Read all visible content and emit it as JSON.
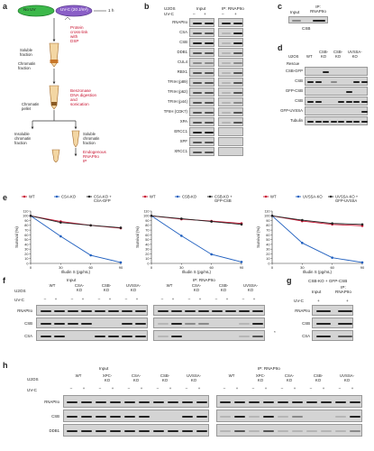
{
  "panel_letters": {
    "a": "a",
    "b": "b",
    "c": "c",
    "d": "d",
    "e": "e",
    "f": "f",
    "g": "g",
    "h": "h"
  },
  "panel_a": {
    "dish1": "No UV",
    "dish2": "UV-C (20 J/m²)",
    "time": "1 h",
    "step1": "Protein\ncross-link\nwith\nDSP",
    "soluble": "Soluble\nfraction",
    "chromatin": "Chromatin\nfraction",
    "step2": "Benzonase\nDNA digestion\nand\nsonication",
    "chromatin2": "Chromatin\npellet",
    "insoluble": "Insoluble\nchromatin\nfraction",
    "soluble_chromatin": "Soluble\nchromatin\nfraction",
    "ip_text": "Endogenous\nRNAPIIo\nIP"
  },
  "panel_b": {
    "cell": "U2OS",
    "uvc": "UV-C",
    "minus": "–",
    "plus": "+",
    "input": "Input",
    "ip": "IP: RNAPIIo",
    "rows": [
      "RNAPIIo",
      "CSA",
      "CSB",
      "DDB1",
      "CUL4",
      "RBX1",
      "TFIIH (p89)",
      "TFIIH (p62)",
      "TFIIH (p44)",
      "TFIIH (CDK7)",
      "XPA",
      "ERCC1",
      "XPF",
      "XRCC1"
    ]
  },
  "panel_c": {
    "input": "Input",
    "ip": "IP: RNAPIIo",
    "row": "CSB"
  },
  "panel_d": {
    "cell": "U2OS",
    "wt": "WT",
    "c1": "CSB-\nKO",
    "c2": "CSB-\nKO",
    "c3": "UVSSA-\nKO",
    "rescue": "Rescue",
    "rows": [
      "CSB-GFP",
      "CSB",
      "GFP-CSB",
      "CSB",
      "GFP-UVSSA",
      "Tubulin"
    ]
  },
  "panel_e": {
    "charts": [
      {
        "legend": [
          {
            "name": "WT",
            "color": "#c8102e"
          },
          {
            "name": "CSA-KO",
            "color": "#1f5fbf"
          },
          {
            "name": "CSA-KO +\nCSA-GFP",
            "color": "#222222"
          }
        ],
        "xlabel": "Illudin S (pg/mL)",
        "ylabel": "Survival (%)",
        "xticks": [
          "0",
          "30",
          "60",
          "90"
        ],
        "yticks": [
          "0",
          "10",
          "20",
          "30",
          "40",
          "50",
          "60",
          "70",
          "80",
          "90",
          "100",
          "110"
        ]
      },
      {
        "legend": [
          {
            "name": "WT",
            "color": "#c8102e"
          },
          {
            "name": "CSB-KO",
            "color": "#1f5fbf"
          },
          {
            "name": "CSB-KO +\nGFP-CSB",
            "color": "#222222"
          }
        ],
        "xlabel": "Illudin S (pg/mL)",
        "ylabel": "Survival (%)",
        "xticks": [
          "0",
          "30",
          "60",
          "90"
        ],
        "yticks": [
          "0",
          "10",
          "20",
          "30",
          "40",
          "50",
          "60",
          "70",
          "80",
          "90",
          "100",
          "110"
        ]
      },
      {
        "legend": [
          {
            "name": "WT",
            "color": "#c8102e"
          },
          {
            "name": "UVSSA-KO",
            "color": "#1f5fbf"
          },
          {
            "name": "UVSSA-KO +\nGFP-UVSSA",
            "color": "#222222"
          }
        ],
        "xlabel": "Illudin S (pg/mL)",
        "ylabel": "Survival (%)",
        "xticks": [
          "0",
          "30",
          "60",
          "90"
        ],
        "yticks": [
          "0",
          "10",
          "20",
          "30",
          "40",
          "50",
          "60",
          "70",
          "80",
          "90",
          "100",
          "110"
        ]
      }
    ]
  },
  "chart_data": [
    {
      "type": "line",
      "x": [
        0,
        30,
        60,
        90
      ],
      "series": [
        {
          "name": "WT",
          "values": [
            100,
            88,
            80,
            74
          ]
        },
        {
          "name": "CSA-KO",
          "values": [
            100,
            57,
            17,
            2
          ]
        },
        {
          "name": "CSA-KO + CSA-GFP",
          "values": [
            100,
            86,
            80,
            75
          ]
        }
      ],
      "xlabel": "Illudin S (pg/mL)",
      "ylabel": "Survival (%)",
      "xlim": [
        0,
        90
      ],
      "ylim": [
        0,
        110
      ]
    },
    {
      "type": "line",
      "x": [
        0,
        30,
        60,
        90
      ],
      "series": [
        {
          "name": "WT",
          "values": [
            100,
            93,
            89,
            84
          ]
        },
        {
          "name": "CSB-KO",
          "values": [
            100,
            58,
            19,
            3
          ]
        },
        {
          "name": "CSB-KO + GFP-CSB",
          "values": [
            100,
            94,
            88,
            82
          ]
        }
      ],
      "xlabel": "Illudin S (pg/mL)",
      "ylabel": "Survival (%)",
      "xlim": [
        0,
        90
      ],
      "ylim": [
        0,
        110
      ]
    },
    {
      "type": "line",
      "x": [
        0,
        30,
        60,
        90
      ],
      "series": [
        {
          "name": "WT",
          "values": [
            100,
            89,
            82,
            79
          ]
        },
        {
          "name": "UVSSA-KO",
          "values": [
            100,
            43,
            12,
            2
          ]
        },
        {
          "name": "UVSSA-KO + GFP-UVSSA",
          "values": [
            100,
            91,
            84,
            82
          ]
        }
      ],
      "xlabel": "Illudin S (pg/mL)",
      "ylabel": "Survival (%)",
      "xlim": [
        0,
        90
      ],
      "ylim": [
        0,
        110
      ]
    }
  ],
  "panel_f": {
    "cell": "U2OS",
    "input": "Input",
    "ip": "IP: RNAPIIo",
    "uvc": "UV-C",
    "wt": "WT",
    "c1": "CSA-\nKO",
    "c2": "CSB-\nKO",
    "c3": "UVSSA-\nKO",
    "rows": [
      "RNAPIIo",
      "CSB",
      "CSA"
    ],
    "star": "*"
  },
  "panel_g": {
    "title": "CSB-KO + GFP-CSB",
    "input": "Input",
    "ip": "IP:\nRNAPIIo",
    "uvc": "UV-C",
    "plus": "+",
    "rows": [
      "RNAPIIo",
      "CSB",
      "CSA"
    ]
  },
  "panel_h": {
    "cell": "U2OS",
    "input": "Input",
    "ip": "IP: RNAPIIo",
    "uvc": "UV-C",
    "cols": [
      "WT",
      "XPC-\nKO",
      "CSA-\nKO",
      "CSB-\nKO",
      "UVSSA-\nKO"
    ],
    "rows": [
      "RNAPIIo",
      "CSB",
      "DDB1"
    ]
  }
}
